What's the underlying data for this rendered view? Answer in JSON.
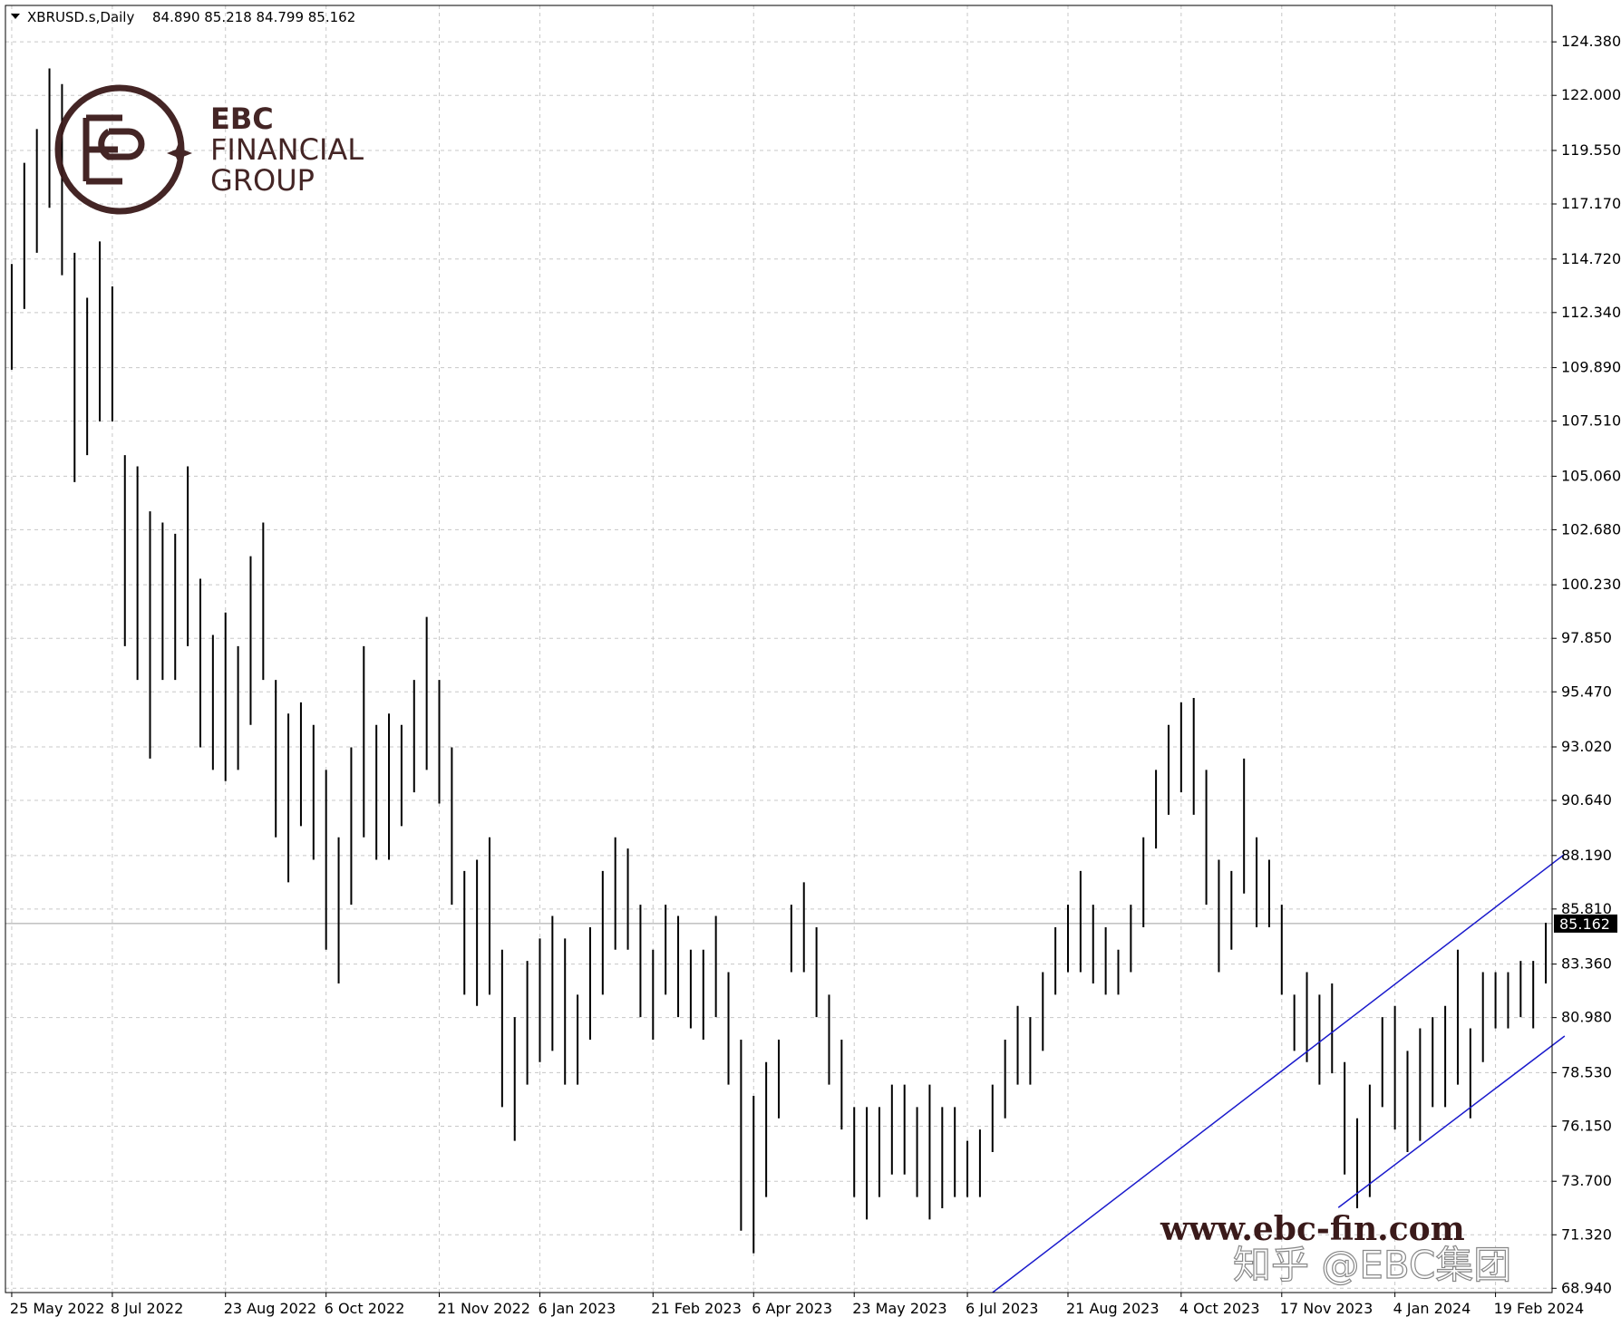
{
  "chart_data": {
    "type": "ohlc",
    "symbol": "XBRUSD.s,Daily",
    "quote": "84.890 85.218 84.799 85.162",
    "color": "#000000",
    "grid": true,
    "ylim": [
      68.75,
      126.0
    ],
    "yticks": [
      {
        "value": 124.38,
        "label": "124.380"
      },
      {
        "value": 122.0,
        "label": "122.000"
      },
      {
        "value": 119.55,
        "label": "119.550"
      },
      {
        "value": 117.17,
        "label": "117.170"
      },
      {
        "value": 114.72,
        "label": "114.720"
      },
      {
        "value": 112.34,
        "label": "112.340"
      },
      {
        "value": 109.89,
        "label": "109.890"
      },
      {
        "value": 107.51,
        "label": "107.510"
      },
      {
        "value": 105.06,
        "label": "105.060"
      },
      {
        "value": 102.68,
        "label": "102.680"
      },
      {
        "value": 100.23,
        "label": "100.230"
      },
      {
        "value": 97.85,
        "label": "97.850"
      },
      {
        "value": 95.47,
        "label": "95.470"
      },
      {
        "value": 93.02,
        "label": "93.020"
      },
      {
        "value": 90.64,
        "label": "90.640"
      },
      {
        "value": 88.19,
        "label": "88.190"
      },
      {
        "value": 85.81,
        "label": "85.810"
      },
      {
        "value": 83.36,
        "label": "83.360"
      },
      {
        "value": 80.98,
        "label": "80.980"
      },
      {
        "value": 78.53,
        "label": "78.530"
      },
      {
        "value": 76.15,
        "label": "76.150"
      },
      {
        "value": 73.7,
        "label": "73.700"
      },
      {
        "value": 71.32,
        "label": "71.320"
      },
      {
        "value": 68.94,
        "label": "68.940"
      }
    ],
    "categories": [
      "25 May 2022",
      null,
      null,
      null,
      null,
      null,
      null,
      null,
      "8 Jul 2022",
      null,
      null,
      null,
      null,
      null,
      null,
      null,
      null,
      "23 Aug 2022",
      null,
      null,
      null,
      null,
      null,
      null,
      null,
      "6 Oct 2022",
      null,
      null,
      null,
      null,
      null,
      null,
      null,
      null,
      "21 Nov 2022",
      null,
      null,
      null,
      null,
      null,
      null,
      null,
      "6 Jan 2023",
      null,
      null,
      null,
      null,
      null,
      null,
      null,
      null,
      "21 Feb 2023",
      null,
      null,
      null,
      null,
      null,
      null,
      null,
      "6 Apr 2023",
      null,
      null,
      null,
      null,
      null,
      null,
      null,
      "23 May 2023",
      null,
      null,
      null,
      null,
      null,
      null,
      null,
      null,
      "6 Jul 2023",
      null,
      null,
      null,
      null,
      null,
      null,
      null,
      "21 Aug 2023",
      null,
      null,
      null,
      null,
      null,
      null,
      null,
      null,
      "4 Oct 2023",
      null,
      null,
      null,
      null,
      null,
      null,
      null,
      "17 Nov 2023",
      null,
      null,
      null,
      null,
      null,
      null,
      null,
      null,
      "4 Jan 2024",
      null,
      null,
      null,
      null,
      null,
      null,
      null,
      "19 Feb 2024",
      null,
      null,
      null,
      null
    ],
    "high": [
      114.5,
      119,
      120.5,
      123.2,
      122.5,
      115,
      113,
      115.5,
      113.5,
      106,
      105.5,
      103.5,
      103,
      102.5,
      105.5,
      100.5,
      98,
      99,
      97.5,
      101.5,
      103,
      96,
      94.5,
      95,
      94,
      92,
      89,
      93,
      97.5,
      94,
      94.5,
      94,
      96,
      98.8,
      96,
      93,
      87.5,
      88,
      89,
      84,
      81,
      83.5,
      84.5,
      85.5,
      84.5,
      82,
      85,
      87.5,
      89,
      88.5,
      86,
      84,
      86,
      85.5,
      84,
      84,
      85.5,
      83,
      80,
      77.5,
      79,
      80,
      86,
      87,
      85,
      82,
      80,
      77,
      77,
      77,
      78,
      78,
      77,
      78,
      77,
      77,
      75.5,
      76,
      78,
      80,
      81.5,
      81,
      83,
      85,
      86,
      87.5,
      86,
      85,
      84,
      86,
      89,
      92,
      94,
      95,
      95.2,
      92,
      88,
      87.5,
      92.5,
      89,
      88,
      86,
      82,
      83,
      82,
      82.5,
      79,
      76.5,
      78,
      81,
      81.5,
      79.5,
      80.5,
      81,
      81.5,
      84,
      80.5,
      83,
      83,
      83,
      83.5,
      83.5,
      85.2
    ],
    "low": [
      109.8,
      112.5,
      115,
      117,
      114,
      104.8,
      106,
      107.5,
      107.5,
      97.5,
      96,
      92.5,
      96,
      96,
      97.5,
      93,
      92,
      91.5,
      92,
      94,
      96,
      89,
      87,
      89.5,
      88,
      84,
      82.5,
      86,
      89,
      88,
      88,
      89.5,
      91,
      92,
      90.5,
      86,
      82,
      81.5,
      82,
      77,
      75.5,
      78,
      79,
      79.5,
      78,
      78,
      80,
      82,
      84,
      84,
      81,
      80,
      82,
      81,
      80.5,
      80,
      81,
      78,
      71.5,
      70.5,
      73,
      76.5,
      83,
      83,
      81,
      78,
      76,
      73,
      72,
      73,
      74,
      74,
      73,
      72,
      72.5,
      73,
      73,
      73,
      75,
      76.5,
      78,
      78,
      79.5,
      82,
      83,
      83,
      82.5,
      82,
      82,
      83,
      85,
      88.5,
      90,
      91,
      90,
      86,
      83,
      84,
      86.5,
      85,
      85,
      82,
      79.5,
      79,
      78,
      78.5,
      74,
      72.5,
      73,
      77,
      76,
      75,
      75.5,
      77,
      77,
      78,
      76.5,
      79,
      80.5,
      80.5,
      81,
      80.5,
      82.5
    ],
    "last_price": {
      "value": 85.162,
      "label": "85.162"
    },
    "trend_color": "#1a1acc",
    "trend_lines": [
      {
        "x": [
          78,
          123.5
        ],
        "y": [
          68.75,
          88.25
        ]
      },
      {
        "x": [
          105.5,
          123.5
        ],
        "y": [
          72.53,
          80.16
        ]
      }
    ]
  },
  "logo": {
    "line1": "EBC",
    "line2": "FINANCIAL",
    "line3": "GROUP"
  },
  "watermark": {
    "site": "www.ebc-fin.com",
    "credit": "知乎 @EBC集团"
  }
}
